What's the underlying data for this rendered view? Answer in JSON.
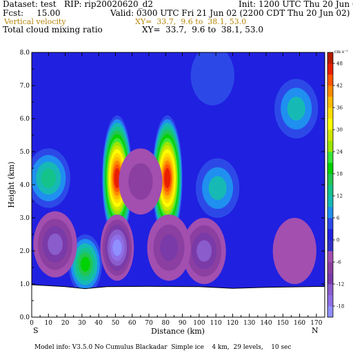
{
  "header": {
    "line1_left": "Dataset: test   RIP: rip20020620_d2",
    "line1_right": "Init: 1200 UTC Thu 20 Jun 02",
    "line2_left": "Fcst:     15.00",
    "line2_right": "Valid: 0300 UTC Fri 21 Jun 02 (2200 CDT Thu 20 Jun 02)",
    "field1_name": "Vertical velocity",
    "field1_xy": "XY=  33.7,  9.6 to  38.1, 53.0",
    "field2_name": "Total cloud mixing ratio",
    "field2_xy": "XY=  33.7,  9.6 to  38.1, 53.0"
  },
  "footer": {
    "model_info": "Model info: V3.5.0 No Cumulus Blackadar  Simple ice    4 km,  29 levels,    10 sec"
  },
  "chart_data": {
    "type": "heatmap",
    "title": "",
    "xlabel": "Distance (km)",
    "ylabel": "Height (km)",
    "xlim": [
      0,
      175
    ],
    "ylim": [
      0,
      8
    ],
    "x_ticks": [
      "0",
      "10",
      "20",
      "30",
      "40",
      "50",
      "60",
      "70",
      "80",
      "90",
      "100",
      "110",
      "120",
      "130",
      "140",
      "150",
      "160",
      "170"
    ],
    "y_ticks": [
      "0.0",
      "1.0",
      "2.0",
      "3.0",
      "4.0",
      "5.0",
      "6.0",
      "7.0",
      "8.0"
    ],
    "left_end_label": "S",
    "right_end_label": "N",
    "colorbar": {
      "unit": "cm s⁻¹",
      "ticks": [
        "48",
        "42",
        "36",
        "30",
        "24",
        "18",
        "12",
        "6",
        "0",
        "-6",
        "-12",
        "-18"
      ],
      "levels": [
        -21,
        -18,
        -15,
        -12,
        -9,
        -6,
        -3,
        0,
        3,
        6,
        9,
        12,
        15,
        18,
        21,
        24,
        27,
        30,
        33,
        36,
        39,
        42,
        45,
        48,
        51
      ],
      "colors": [
        "#8f8fff",
        "#8f6fe8",
        "#8a5ccc",
        "#7a3aa8",
        "#8b3fa0",
        "#a24fb0",
        "#3030c8",
        "#2020e0",
        "#2c49e8",
        "#1f8ff0",
        "#17b9b5",
        "#14c38a",
        "#21c552",
        "#00d200",
        "#39e639",
        "#9be600",
        "#cfe600",
        "#ffff00",
        "#ffdd00",
        "#ffbb00",
        "#ff8800",
        "#ff5500",
        "#e81f00",
        "#b41b00"
      ]
    },
    "terrain_profile_km": [
      [
        0,
        0.98
      ],
      [
        20,
        0.92
      ],
      [
        32,
        0.86
      ],
      [
        45,
        0.92
      ],
      [
        70,
        0.93
      ],
      [
        100,
        0.92
      ],
      [
        120,
        0.87
      ],
      [
        140,
        0.9
      ],
      [
        175,
        0.93
      ]
    ],
    "features": [
      {
        "kind": "updraft",
        "x": 51,
        "y": 4.2,
        "peak": 45
      },
      {
        "kind": "updraft",
        "x": 81,
        "y": 4.2,
        "peak": 45
      },
      {
        "kind": "updraft",
        "x": 32,
        "y": 1.6,
        "peak": 18
      },
      {
        "kind": "updraft",
        "x": 10,
        "y": 4.2,
        "peak": 12
      },
      {
        "kind": "updraft",
        "x": 111,
        "y": 3.9,
        "peak": 9
      },
      {
        "kind": "updraft",
        "x": 158,
        "y": 6.3,
        "peak": 9
      },
      {
        "kind": "updraft",
        "x": 108,
        "y": 7.3,
        "peak": 3
      },
      {
        "kind": "downdraft",
        "x": 51,
        "y": 2.1,
        "peak": -18
      },
      {
        "kind": "downdraft",
        "x": 14,
        "y": 2.2,
        "peak": -12
      },
      {
        "kind": "downdraft",
        "x": 103,
        "y": 2.0,
        "peak": -12
      },
      {
        "kind": "downdraft",
        "x": 82,
        "y": 2.1,
        "peak": -10
      },
      {
        "kind": "downdraft",
        "x": 65,
        "y": 4.1,
        "peak": -8
      },
      {
        "kind": "downdraft",
        "x": 157,
        "y": 2.0,
        "peak": -4
      }
    ]
  }
}
